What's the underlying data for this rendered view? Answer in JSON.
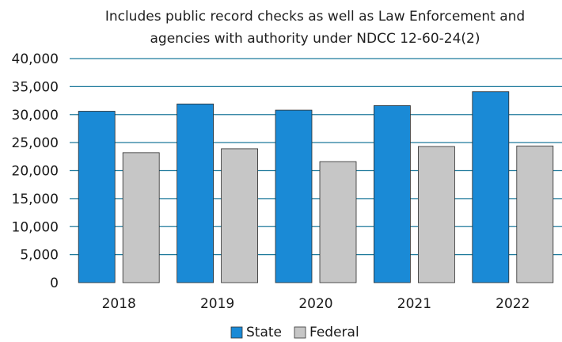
{
  "chart_data": {
    "type": "bar",
    "title_lines": [
      "Includes public record checks as well as Law Enforcement and",
      "agencies with authority under NDCC 12-60-24(2)"
    ],
    "categories": [
      "2018",
      "2019",
      "2020",
      "2021",
      "2022"
    ],
    "series": [
      {
        "name": "State",
        "values": [
          30600,
          31900,
          30800,
          31600,
          34100
        ],
        "color": "#1a8ad6"
      },
      {
        "name": "Federal",
        "values": [
          23200,
          23900,
          21600,
          24300,
          24400
        ],
        "color": "#c6c6c6"
      }
    ],
    "ylim": [
      0,
      40000
    ],
    "yticks": [
      0,
      5000,
      10000,
      15000,
      20000,
      25000,
      30000,
      35000,
      40000
    ],
    "ytick_labels": [
      "0",
      "5,000",
      "10,000",
      "15,000",
      "20,000",
      "25,000",
      "30,000",
      "35,000",
      "40,000"
    ],
    "grid": true,
    "grid_color": "#1f7a9c",
    "legend_position": "bottom-center"
  }
}
